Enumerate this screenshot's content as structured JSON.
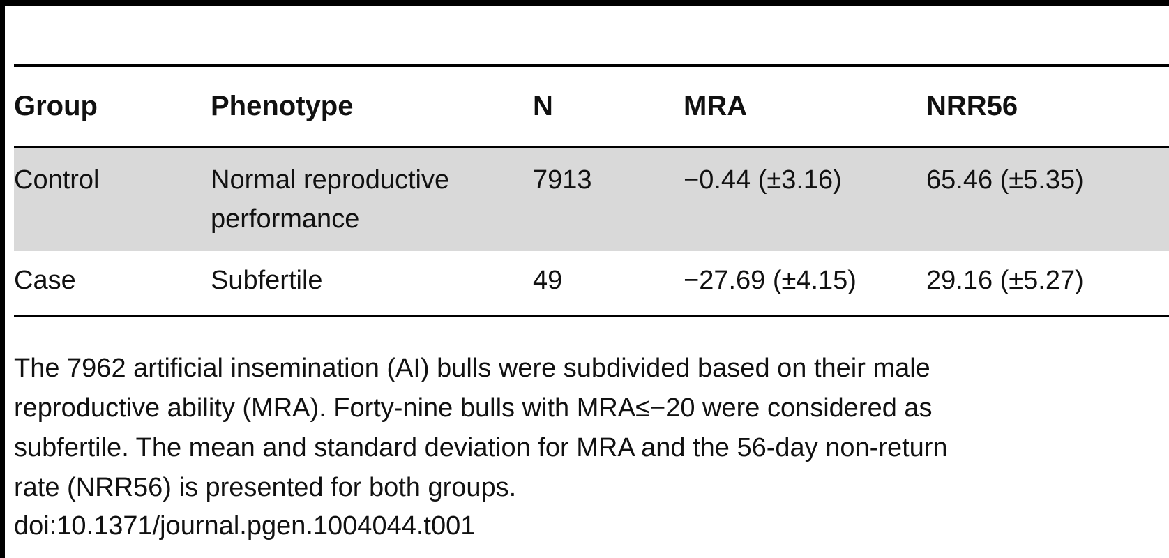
{
  "table": {
    "columns": [
      "Group",
      "Phenotype",
      "N",
      "MRA",
      "NRR56"
    ],
    "rows": [
      {
        "group": "Control",
        "phenotype_line1": "Normal reproductive",
        "phenotype_line2": "performance",
        "n": "7913",
        "mra": "−0.44 (±3.16)",
        "nrr56": "65.46 (±5.35)"
      },
      {
        "group": "Case",
        "phenotype_line1": "Subfertile",
        "n": "49",
        "mra": "−27.69 (±4.15)",
        "nrr56": "29.16 (±5.27)"
      }
    ]
  },
  "footnote": {
    "lines": [
      "The 7962 artificial insemination (AI) bulls were subdivided based on their male",
      "reproductive ability (MRA). Forty-nine bulls with MRA≤−20 were considered as",
      "subfertile. The mean and standard deviation for MRA and the 56-day non-return",
      "rate (NRR56) is presented for both groups."
    ],
    "doi": "doi:10.1371/journal.pgen.1004044.t001"
  },
  "colors": {
    "rule": "#000000",
    "shaded_row": "#d9d9d9",
    "text": "#111111"
  }
}
